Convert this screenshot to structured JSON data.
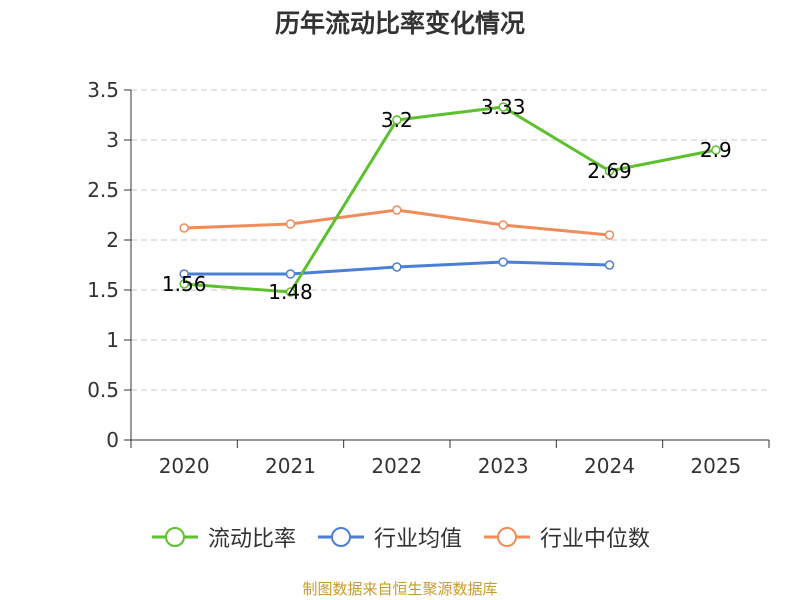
{
  "chart_data": {
    "type": "line",
    "title": "历年流动比率变化情况",
    "categories": [
      "2020",
      "2021",
      "2022",
      "2023",
      "2024",
      "2025"
    ],
    "ylim": [
      0,
      3.5
    ],
    "yticks": [
      "0",
      "0.5",
      "1",
      "1.5",
      "2",
      "2.5",
      "3",
      "3.5"
    ],
    "grid": true,
    "legend_position": "bottom",
    "series": [
      {
        "name": "流动比率",
        "color": "#5dc02e",
        "values": [
          1.56,
          1.48,
          3.2,
          3.33,
          2.69,
          2.9
        ],
        "labels": [
          "1.56",
          "1.48",
          "3.2",
          "3.33",
          "2.69",
          "2.9"
        ]
      },
      {
        "name": "行业均值",
        "color": "#4a7fd4",
        "values": [
          1.66,
          1.66,
          1.73,
          1.78,
          1.75,
          null
        ]
      },
      {
        "name": "行业中位数",
        "color": "#f08c5a",
        "values": [
          2.12,
          2.16,
          2.3,
          2.15,
          2.05,
          null
        ]
      }
    ]
  },
  "source": "制图数据来自恒生聚源数据库"
}
